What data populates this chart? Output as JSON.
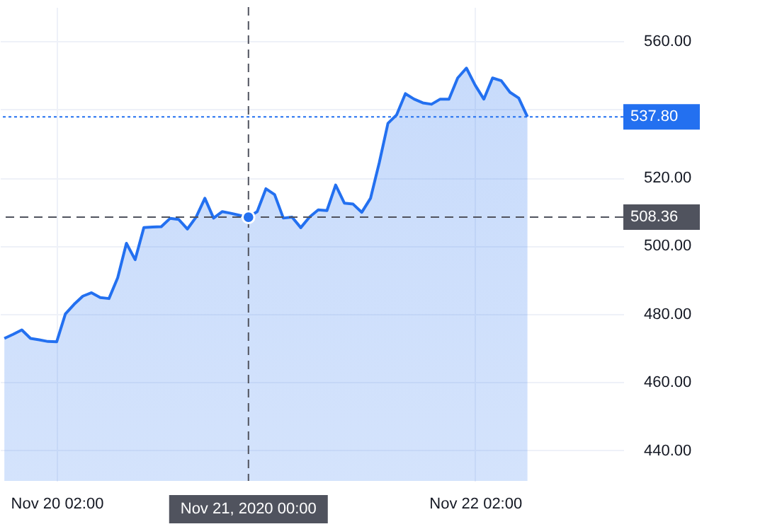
{
  "chart_data": {
    "type": "area",
    "x": [
      "2020-11-19T20:00",
      "2020-11-19T21:00",
      "2020-11-19T22:00",
      "2020-11-19T23:00",
      "2020-11-20T00:00",
      "2020-11-20T01:00",
      "2020-11-20T02:00",
      "2020-11-20T03:00",
      "2020-11-20T04:00",
      "2020-11-20T05:00",
      "2020-11-20T06:00",
      "2020-11-20T07:00",
      "2020-11-20T08:00",
      "2020-11-20T09:00",
      "2020-11-20T10:00",
      "2020-11-20T11:00",
      "2020-11-20T12:00",
      "2020-11-20T13:00",
      "2020-11-20T14:00",
      "2020-11-20T15:00",
      "2020-11-20T16:00",
      "2020-11-20T17:00",
      "2020-11-20T18:00",
      "2020-11-20T19:00",
      "2020-11-20T20:00",
      "2020-11-20T21:00",
      "2020-11-20T22:00",
      "2020-11-20T23:00",
      "2020-11-21T00:00",
      "2020-11-21T01:00",
      "2020-11-21T02:00",
      "2020-11-21T03:00",
      "2020-11-21T04:00",
      "2020-11-21T05:00",
      "2020-11-21T06:00",
      "2020-11-21T07:00",
      "2020-11-21T08:00",
      "2020-11-21T09:00",
      "2020-11-21T10:00",
      "2020-11-21T11:00",
      "2020-11-21T12:00",
      "2020-11-21T13:00",
      "2020-11-21T14:00",
      "2020-11-21T15:00",
      "2020-11-21T16:00",
      "2020-11-21T17:00",
      "2020-11-21T18:00",
      "2020-11-21T19:00",
      "2020-11-21T20:00",
      "2020-11-21T21:00",
      "2020-11-21T22:00",
      "2020-11-21T23:00",
      "2020-11-22T00:00",
      "2020-11-22T01:00",
      "2020-11-22T02:00",
      "2020-11-22T03:00",
      "2020-11-22T04:00",
      "2020-11-22T05:00",
      "2020-11-22T06:00",
      "2020-11-22T07:00",
      "2020-11-22T08:00"
    ],
    "series": [
      {
        "color": "#2370f0",
        "values": [
          472.8,
          474.0,
          475.3,
          472.8,
          472.4,
          471.9,
          471.8,
          480.0,
          482.8,
          485.2,
          486.2,
          484.8,
          484.5,
          490.6,
          500.7,
          495.9,
          505.3,
          505.5,
          505.6,
          508.0,
          507.7,
          504.9,
          508.4,
          513.9,
          508.1,
          510.0,
          509.5,
          508.9,
          508.36,
          510.0,
          516.7,
          515.0,
          508.1,
          508.4,
          505.3,
          508.4,
          510.5,
          510.3,
          517.8,
          512.5,
          512.2,
          509.8,
          513.9,
          524.3,
          535.9,
          538.4,
          544.6,
          543.0,
          541.9,
          541.5,
          543.0,
          543.0,
          549.2,
          552.1,
          547.1,
          543.0,
          549.2,
          548.4,
          545.0,
          543.3,
          537.8
        ]
      },
      {
        "type": "scatter",
        "marker": "circle",
        "color": "#2370f0",
        "x": [
          "2020-11-21T00:00"
        ],
        "values": [
          508.36
        ]
      }
    ],
    "xlim": [
      "2020-11-19T19:30",
      "2020-11-22T19:00"
    ],
    "xticks": [
      {
        "value": "2020-11-20T02:00",
        "label": "Nov 20 02:00"
      },
      {
        "value": "2020-11-22T02:00",
        "label": "Nov 22 02:00"
      }
    ],
    "ylim": [
      431,
      570
    ],
    "yticks": [
      {
        "value": 440,
        "label": "440.00"
      },
      {
        "value": 460,
        "label": "460.00"
      },
      {
        "value": 480,
        "label": "480.00"
      },
      {
        "value": 500,
        "label": "500.00"
      },
      {
        "value": 520,
        "label": "520.00"
      },
      {
        "value": 540,
        "label": null
      },
      {
        "value": 560,
        "label": "560.00"
      }
    ],
    "grid": true,
    "ref_lines": [
      {
        "axis": "y",
        "value": 537.8,
        "label": "537.80",
        "color": "#2370f0",
        "line_style": "dotted"
      },
      {
        "axis": "y",
        "value": 508.36,
        "label": "508.36",
        "color": "#50535e",
        "line_style": "dashed"
      },
      {
        "axis": "x",
        "value": "2020-11-21T00:00",
        "label": "Nov 21, 2020 00:00",
        "color": "#50535e",
        "line_style": "dashed"
      }
    ]
  }
}
